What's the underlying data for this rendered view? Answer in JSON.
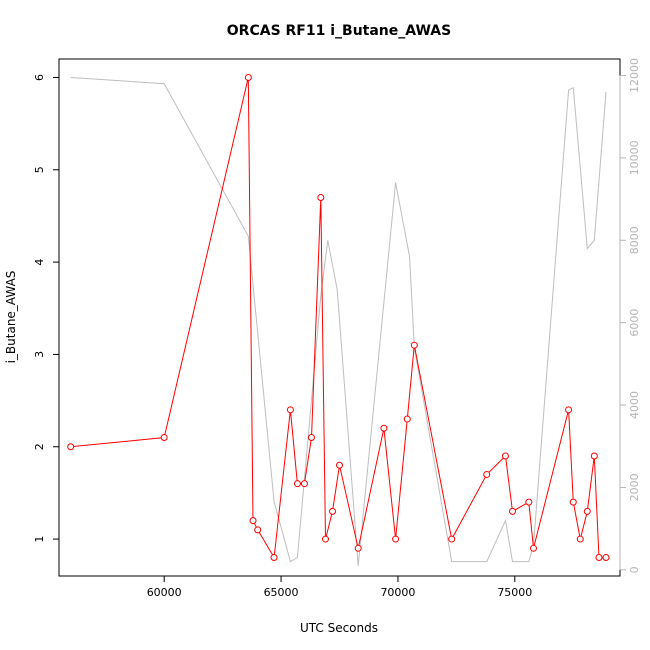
{
  "chart_data": {
    "type": "line",
    "title": "ORCAS RF11 i_Butane_AWAS",
    "xlabel": "UTC Seconds",
    "ylabel": "i_Butane_AWAS",
    "xlim": [
      55500,
      79500
    ],
    "ylim": [
      0.6,
      6.2
    ],
    "y2lim": [
      -150,
      12400
    ],
    "x_ticks": [
      60000,
      65000,
      70000,
      75000
    ],
    "x_tick_labels": [
      "60000",
      "65000",
      "70000",
      "75000"
    ],
    "y_ticks": [
      1,
      2,
      3,
      4,
      5,
      6
    ],
    "y_tick_labels": [
      "1",
      "2",
      "3",
      "4",
      "5",
      "6"
    ],
    "y2_ticks": [
      0,
      2000,
      4000,
      6000,
      8000,
      10000,
      12000
    ],
    "y2_tick_labels": [
      "0",
      "2000",
      "4000",
      "6000",
      "8000",
      "10000",
      "12000"
    ],
    "grid": false,
    "series": [
      {
        "color": "#ff0000",
        "axis": "left",
        "marker": "circle",
        "x": [
          56000,
          60000,
          63600,
          63800,
          64000,
          64700,
          65400,
          65700,
          66000,
          66300,
          66700,
          66900,
          67200,
          67500,
          68300,
          69400,
          69900,
          70400,
          70700,
          72300,
          73800,
          74600,
          74900,
          75600,
          75800,
          77300,
          77500,
          77800,
          78100,
          78400,
          78600,
          78900
        ],
        "values": [
          2.0,
          2.1,
          6.0,
          1.2,
          1.1,
          0.8,
          2.4,
          1.6,
          1.6,
          2.1,
          4.7,
          1.0,
          1.3,
          1.8,
          0.9,
          2.2,
          1.0,
          2.3,
          3.1,
          1.0,
          1.7,
          1.9,
          1.3,
          1.4,
          0.9,
          2.4,
          1.4,
          1.0,
          1.3,
          1.9,
          0.8,
          0.8
        ]
      },
      {
        "color": "#bebebe",
        "axis": "right",
        "marker": "none",
        "x": [
          56000,
          60000,
          63600,
          64700,
          65400,
          65700,
          66700,
          67000,
          67400,
          68300,
          69900,
          70500,
          70700,
          72300,
          73800,
          74600,
          74900,
          75600,
          75800,
          77300,
          77500,
          78100,
          78400,
          78900
        ],
        "values": [
          11950,
          11800,
          8100,
          1650,
          200,
          300,
          6650,
          8000,
          6800,
          100,
          9400,
          7600,
          5400,
          200,
          200,
          1200,
          200,
          200,
          600,
          11650,
          11700,
          7800,
          8000,
          11600
        ]
      }
    ]
  }
}
